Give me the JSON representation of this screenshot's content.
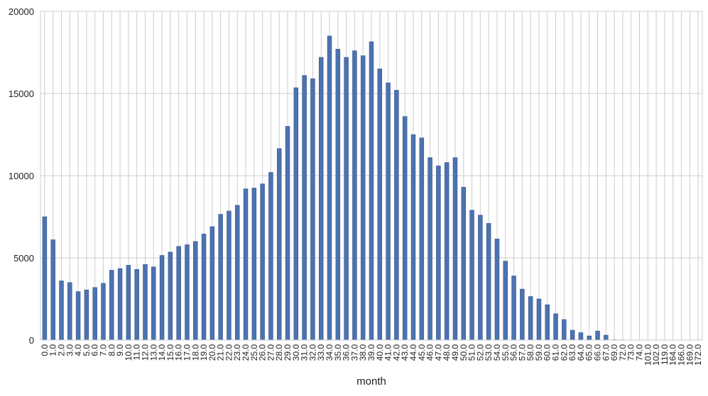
{
  "chart_data": {
    "type": "bar",
    "xlabel": "month",
    "ylabel": "",
    "ylim": [
      0,
      20000
    ],
    "yticks": [
      0,
      5000,
      10000,
      15000,
      20000
    ],
    "grid": true,
    "categories": [
      "0.0",
      "1.0",
      "2.0",
      "3.0",
      "4.0",
      "5.0",
      "6.0",
      "7.0",
      "8.0",
      "9.0",
      "10.0",
      "11.0",
      "12.0",
      "13.0",
      "14.0",
      "15.0",
      "16.0",
      "17.0",
      "18.0",
      "19.0",
      "20.0",
      "21.0",
      "22.0",
      "23.0",
      "24.0",
      "25.0",
      "26.0",
      "27.0",
      "28.0",
      "29.0",
      "30.0",
      "31.0",
      "32.0",
      "33.0",
      "34.0",
      "35.0",
      "36.0",
      "37.0",
      "38.0",
      "39.0",
      "40.0",
      "41.0",
      "42.0",
      "43.0",
      "44.0",
      "45.0",
      "46.0",
      "47.0",
      "48.0",
      "49.0",
      "50.0",
      "51.0",
      "52.0",
      "53.0",
      "54.0",
      "55.0",
      "56.0",
      "57.0",
      "58.0",
      "59.0",
      "60.0",
      "61.0",
      "62.0",
      "63.0",
      "64.0",
      "65.0",
      "66.0",
      "67.0",
      "69.0",
      "72.0",
      "73.0",
      "74.0",
      "101.0",
      "102.0",
      "119.0",
      "164.0",
      "166.0",
      "169.0",
      "172.0"
    ],
    "values": [
      7500,
      6100,
      3600,
      3500,
      2950,
      3050,
      3200,
      3450,
      4250,
      4350,
      4550,
      4300,
      4600,
      4450,
      5150,
      5350,
      5700,
      5800,
      6000,
      6450,
      6900,
      7650,
      7850,
      8200,
      9200,
      9250,
      9500,
      10200,
      11650,
      13000,
      15350,
      16100,
      15900,
      17200,
      18500,
      17700,
      17200,
      17600,
      17300,
      18150,
      16500,
      15650,
      15200,
      13600,
      12500,
      12300,
      11100,
      10600,
      10800,
      11100,
      9300,
      7900,
      7600,
      7100,
      6150,
      4800,
      3900,
      3100,
      2650,
      2500,
      2150,
      1600,
      1250,
      600,
      450,
      250,
      550,
      300,
      20,
      15,
      10,
      10,
      8,
      8,
      8,
      8,
      8,
      8,
      8
    ],
    "colors": {
      "bar": "#4c72b0",
      "bar_edge": "#3a5a8f",
      "grid": "#cccccc",
      "frame": "#cccccc"
    }
  }
}
